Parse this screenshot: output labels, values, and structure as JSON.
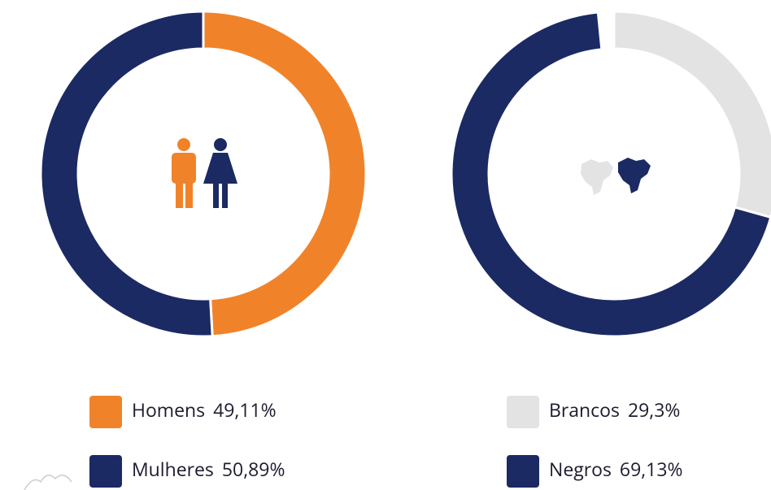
{
  "chart_data": [
    {
      "type": "donut",
      "categories": [
        "Homens",
        "Mulheres"
      ],
      "values": [
        49.11,
        50.89
      ],
      "value_labels": [
        "49,11%",
        "50,89%"
      ],
      "colors": [
        "#f0832a",
        "#1b2a63"
      ]
    },
    {
      "type": "donut",
      "categories": [
        "Brancos",
        "Negros"
      ],
      "values": [
        29.3,
        69.13
      ],
      "value_labels": [
        "29,3%",
        "69,13%"
      ],
      "colors": [
        "#e3e3e3",
        "#1b2a63"
      ]
    }
  ]
}
